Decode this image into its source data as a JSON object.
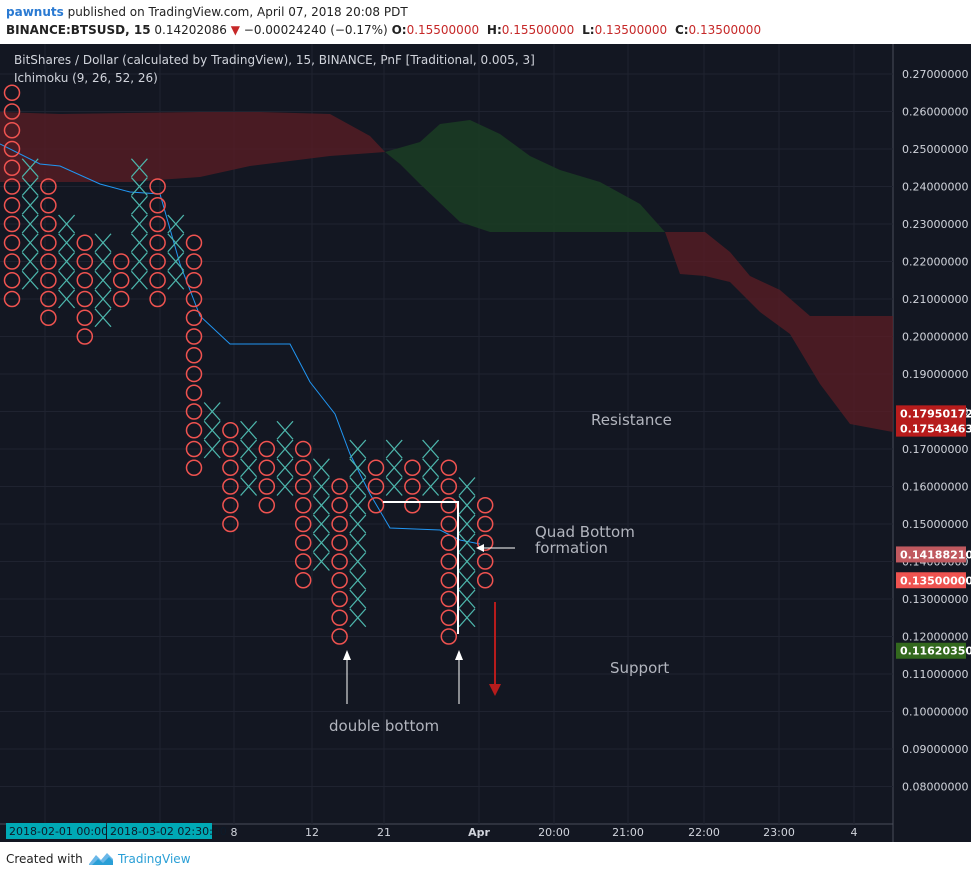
{
  "header": {
    "user": "pawnuts",
    "published": "published on TradingView.com, April 07, 2018 20:08 PDT",
    "symbol": "BINANCE:BTSUSD, 15",
    "price": "0.14202086",
    "change": "−0.00024240 (−0.17%)",
    "ohlc": [
      {
        "label": "O:",
        "value": "0.15500000"
      },
      {
        "label": "H:",
        "value": "0.15500000"
      },
      {
        "label": "L:",
        "value": "0.13500000"
      },
      {
        "label": "C:",
        "value": "0.13500000"
      }
    ]
  },
  "footer": {
    "created": "Created with",
    "brand": "TradingView"
  },
  "chart_data": {
    "type": "point_and_figure",
    "title": "BitShares / Dollar (calculated by TradingView), 15, BINANCE, PnF [Traditional, 0.005, 3]",
    "indicator": "Ichimoku (9, 26, 52, 26)",
    "box_size": 0.005,
    "reversal": 3,
    "y_ticks": [
      "0.27000000",
      "0.26000000",
      "0.25000000",
      "0.24000000",
      "0.23000000",
      "0.22000000",
      "0.21000000",
      "0.20000000",
      "0.19000000",
      "0.18000000",
      "0.17000000",
      "0.16000000",
      "0.15000000",
      "0.14000000",
      "0.13000000",
      "0.12000000",
      "0.11000000",
      "0.10000000",
      "0.09000000",
      "0.08000000"
    ],
    "y_tick_values": [
      0.27,
      0.26,
      0.25,
      0.24,
      0.23,
      0.22,
      0.21,
      0.2,
      0.19,
      0.18,
      0.17,
      0.16,
      0.15,
      0.14,
      0.13,
      0.12,
      0.11,
      0.1,
      0.09,
      0.08
    ],
    "x_ticks": [
      "2018-02-01 00:00:0",
      "2018-03-02 02:30:00",
      "8",
      "12",
      "21",
      "Apr",
      "20:00",
      "21:00",
      "22:00",
      "23:00",
      "4"
    ],
    "columns": [
      {
        "type": "O",
        "high": 0.265,
        "low": 0.21
      },
      {
        "type": "X",
        "high": 0.245,
        "low": 0.215
      },
      {
        "type": "O",
        "high": 0.24,
        "low": 0.205
      },
      {
        "type": "X",
        "high": 0.23,
        "low": 0.21
      },
      {
        "type": "O",
        "high": 0.225,
        "low": 0.2
      },
      {
        "type": "X",
        "high": 0.225,
        "low": 0.205
      },
      {
        "type": "O",
        "high": 0.22,
        "low": 0.21
      },
      {
        "type": "X",
        "high": 0.245,
        "low": 0.215
      },
      {
        "type": "O",
        "high": 0.24,
        "low": 0.21
      },
      {
        "type": "X",
        "high": 0.23,
        "low": 0.215
      },
      {
        "type": "O",
        "high": 0.225,
        "low": 0.165
      },
      {
        "type": "X",
        "high": 0.18,
        "low": 0.17
      },
      {
        "type": "O",
        "high": 0.175,
        "low": 0.15
      },
      {
        "type": "X",
        "high": 0.175,
        "low": 0.16
      },
      {
        "type": "O",
        "high": 0.17,
        "low": 0.155
      },
      {
        "type": "X",
        "high": 0.175,
        "low": 0.16
      },
      {
        "type": "O",
        "high": 0.17,
        "low": 0.135
      },
      {
        "type": "X",
        "high": 0.165,
        "low": 0.14
      },
      {
        "type": "O",
        "high": 0.16,
        "low": 0.12
      },
      {
        "type": "X",
        "high": 0.17,
        "low": 0.125
      },
      {
        "type": "O",
        "high": 0.165,
        "low": 0.155
      },
      {
        "type": "X",
        "high": 0.17,
        "low": 0.16
      },
      {
        "type": "O",
        "high": 0.165,
        "low": 0.155
      },
      {
        "type": "X",
        "high": 0.17,
        "low": 0.16
      },
      {
        "type": "O",
        "high": 0.165,
        "low": 0.12
      },
      {
        "type": "X",
        "high": 0.16,
        "low": 0.125
      },
      {
        "type": "O",
        "high": 0.155,
        "low": 0.135
      }
    ],
    "price_labels": [
      {
        "value": 0.17950172,
        "text": "0.17950172",
        "color": "#b71c1c"
      },
      {
        "value": 0.17543463,
        "text": "0.17543463",
        "color": "#b71c1c"
      },
      {
        "value": 0.1418821,
        "text": "0.14188210",
        "color": "#c0595f"
      },
      {
        "value": 0.135,
        "text": "0.13500000",
        "color": "#ef5350"
      },
      {
        "value": 0.1162035,
        "text": "0.11620350",
        "color": "#33691e"
      }
    ],
    "annotations": {
      "resistance": "Resistance",
      "support": "Support",
      "quad_bottom_1": "Quad Bottom",
      "quad_bottom_2": "formation",
      "double_bottom": "double bottom"
    },
    "colors": {
      "x_mark": "#4db6ac",
      "o_mark": "#ef5350",
      "background": "#131722",
      "trendline": "#b71c1c",
      "support_line": "#43a047",
      "kijun": "#2196f3",
      "cloud_bear": "#5c1e24",
      "cloud_bull": "#1b3b23"
    }
  }
}
